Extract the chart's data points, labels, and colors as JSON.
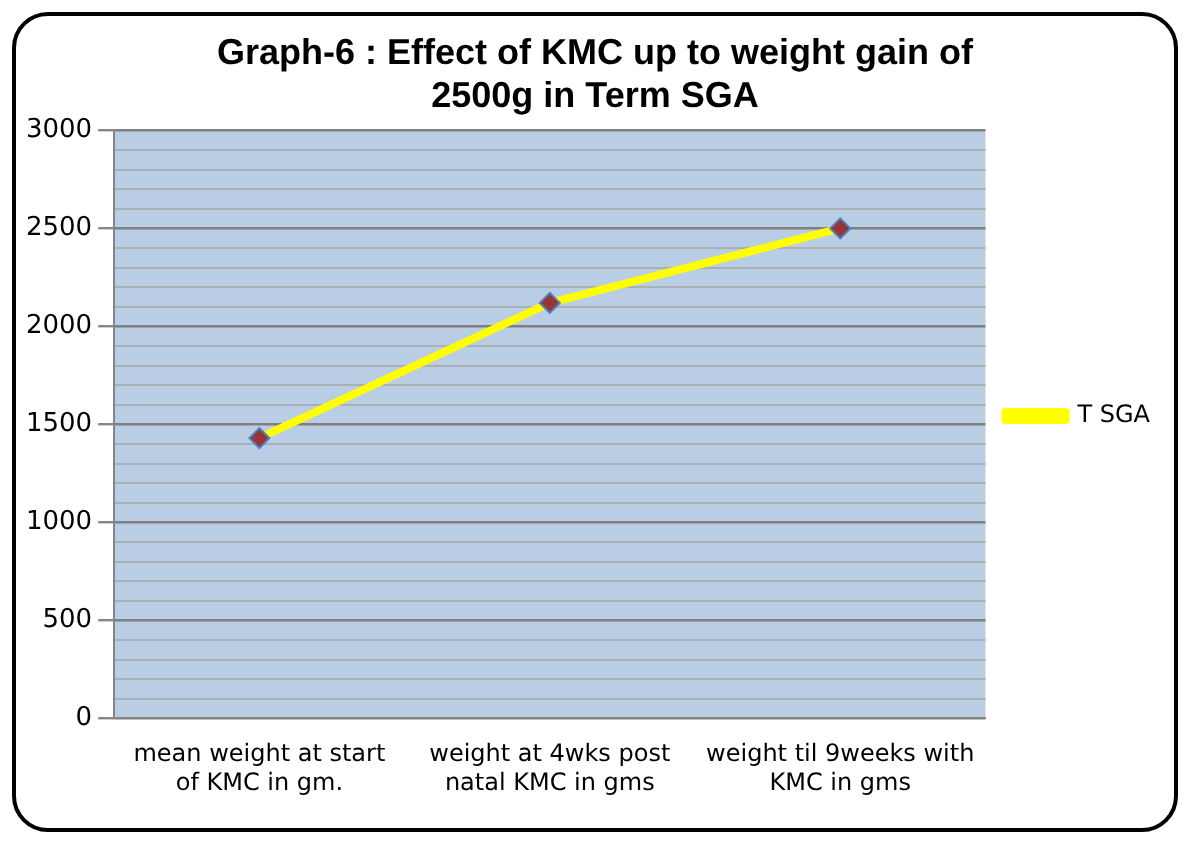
{
  "chart_data": {
    "type": "line",
    "title": "Graph-6 : Effect of KMC up to weight gain of 2500g in Term SGA",
    "categories": [
      "mean weight at start of KMC in gm.",
      "weight at 4wks post natal KMC in gms",
      "weight til 9weeks with KMC in gms"
    ],
    "series": [
      {
        "name": "T SGA",
        "color": "#ffff00",
        "values": [
          1430,
          2120,
          2500
        ]
      }
    ],
    "ylim": [
      0,
      3000
    ],
    "yticks": [
      0,
      {
        "value": 100,
        "label": null
      },
      {
        "value": 200,
        "label": null
      },
      {
        "value": 300,
        "label": null
      },
      {
        "value": 400,
        "label": null
      },
      500,
      {
        "value": 600,
        "label": null
      },
      {
        "value": 700,
        "label": null
      },
      {
        "value": 800,
        "label": null
      },
      {
        "value": 900,
        "label": null
      },
      1000,
      {
        "value": 1100,
        "label": null
      },
      {
        "value": 1200,
        "label": null
      },
      {
        "value": 1300,
        "label": null
      },
      {
        "value": 1400,
        "label": null
      },
      1500,
      {
        "value": 1600,
        "label": null
      },
      {
        "value": 1700,
        "label": null
      },
      {
        "value": 1800,
        "label": null
      },
      {
        "value": 1900,
        "label": null
      },
      2000,
      {
        "value": 2100,
        "label": null
      },
      {
        "value": 2200,
        "label": null
      },
      {
        "value": 2300,
        "label": null
      },
      {
        "value": 2400,
        "label": null
      },
      2500,
      {
        "value": 2600,
        "label": null
      },
      {
        "value": 2700,
        "label": null
      },
      {
        "value": 2800,
        "label": null
      },
      {
        "value": 2900,
        "label": null
      },
      3000
    ],
    "grid": "y",
    "legend": "right",
    "marker": "diamond",
    "line_style": "solid"
  }
}
